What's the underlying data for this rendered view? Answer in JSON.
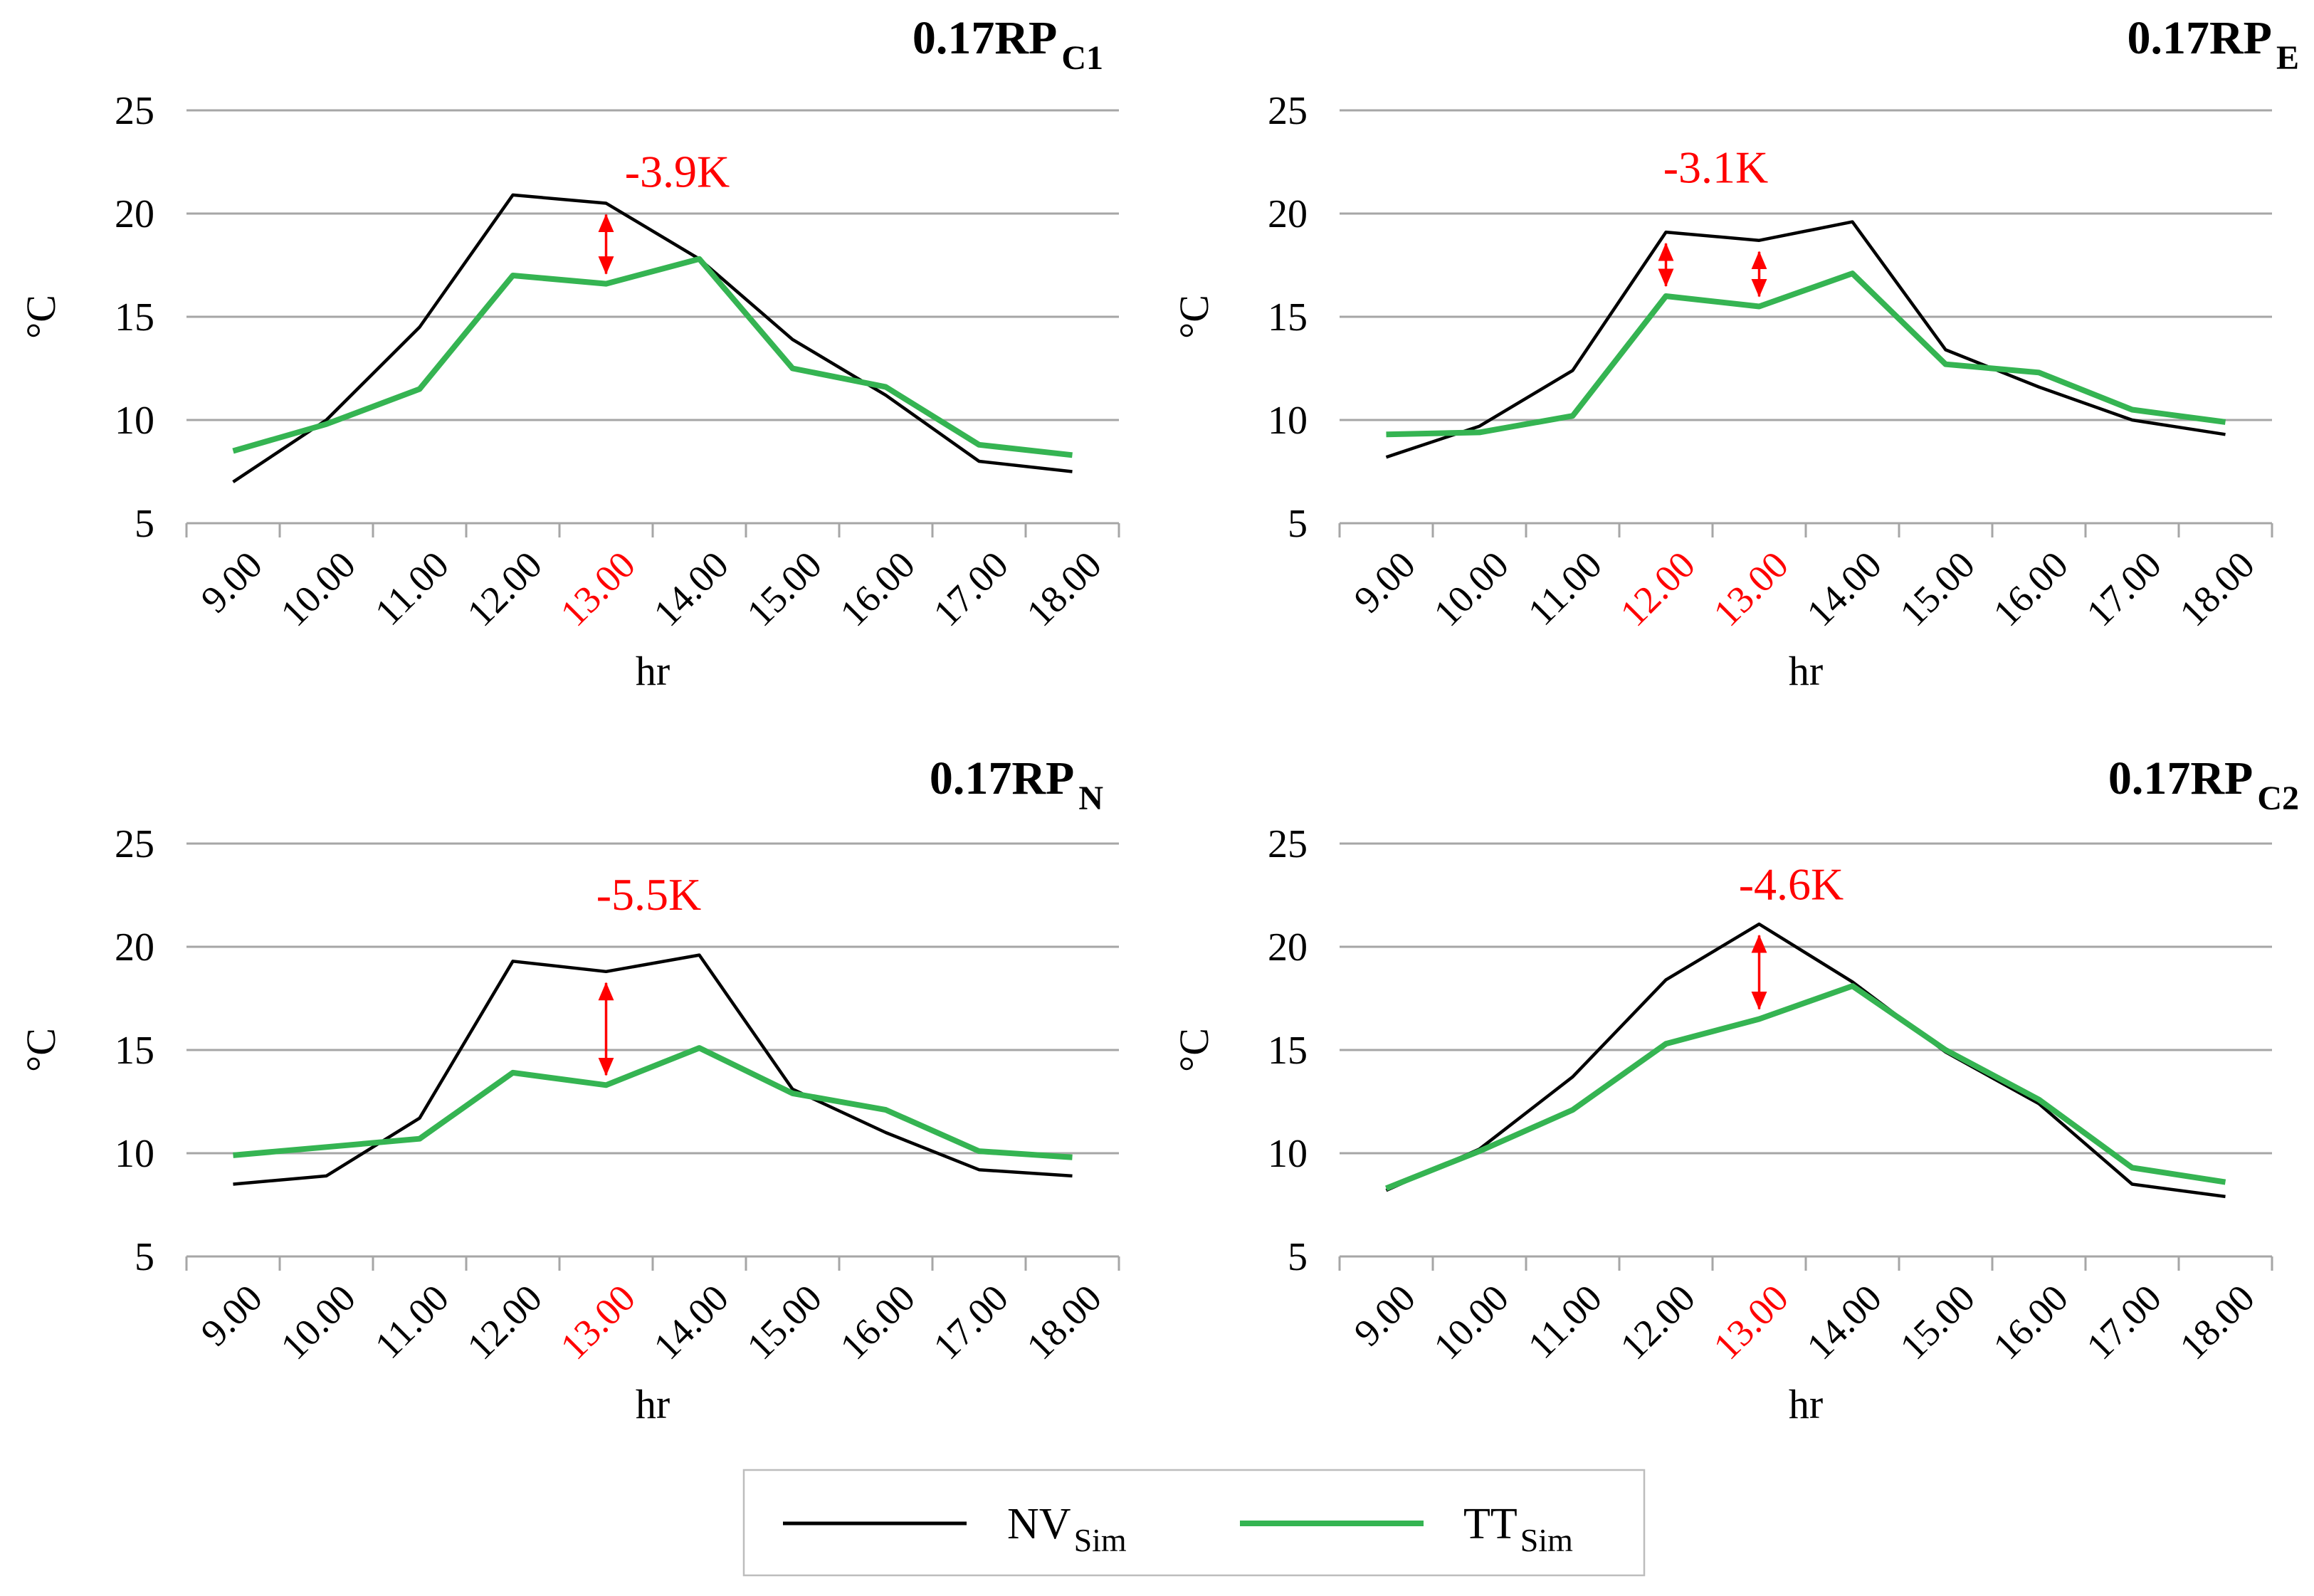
{
  "figure": {
    "ylabel": "°C",
    "xlabel": "hr",
    "colors": {
      "nv_line": "#000000",
      "tt_line": "#35b452",
      "annotation": "#ff0000",
      "gridline": "#a6a6a6",
      "highlighted_tick": "#ff0000",
      "legend_border": "#bdbdbd"
    }
  },
  "legend": {
    "items": [
      {
        "label": "NV",
        "sub": "Sim",
        "color": "#000000"
      },
      {
        "label": "TT",
        "sub": "Sim",
        "color": "#35b452"
      }
    ]
  },
  "chart_data": [
    {
      "type": "line",
      "title_base": "0.17RP",
      "title_sub": "C1",
      "x": [
        "9.00",
        "10.00",
        "11.00",
        "12.00",
        "13.00",
        "14.00",
        "15.00",
        "16.00",
        "17.00",
        "18.00"
      ],
      "highlighted_x": [
        "13.00"
      ],
      "yticks": [
        "25",
        "20",
        "15",
        "10",
        "5"
      ],
      "ylim": [
        5,
        25
      ],
      "grid": true,
      "series": [
        {
          "name": "NV",
          "sub": "Sim",
          "color": "#000000",
          "values": [
            7.0,
            10.0,
            14.5,
            20.9,
            20.5,
            17.8,
            13.9,
            11.2,
            8.0,
            7.5
          ]
        },
        {
          "name": "TT",
          "sub": "Sim",
          "color": "#35b452",
          "values": [
            8.5,
            9.8,
            11.5,
            17.0,
            16.6,
            17.8,
            12.5,
            11.6,
            8.8,
            8.3
          ]
        }
      ],
      "annotation": {
        "label": "-3.9K",
        "label_x": "13.00",
        "label_dx": 100,
        "label_y": 21.3,
        "arrows": [
          {
            "x": "13.00",
            "from": 16.6,
            "to": 20.5
          }
        ]
      }
    },
    {
      "type": "line",
      "title_base": "0.17RP",
      "title_sub": "E",
      "x": [
        "9.00",
        "10.00",
        "11.00",
        "12.00",
        "13.00",
        "14.00",
        "15.00",
        "16.00",
        "17.00",
        "18.00"
      ],
      "highlighted_x": [
        "12.00",
        "13.00"
      ],
      "yticks": [
        "25",
        "20",
        "15",
        "10",
        "5"
      ],
      "ylim": [
        5,
        25
      ],
      "grid": true,
      "series": [
        {
          "name": "NV",
          "sub": "Sim",
          "color": "#000000",
          "values": [
            8.2,
            9.7,
            12.4,
            19.1,
            18.7,
            19.6,
            13.4,
            11.6,
            10.0,
            9.3
          ]
        },
        {
          "name": "TT",
          "sub": "Sim",
          "color": "#35b452",
          "values": [
            9.3,
            9.4,
            10.2,
            16.0,
            15.5,
            17.1,
            12.7,
            12.3,
            10.5,
            9.9
          ]
        }
      ],
      "annotation": {
        "label": "-3.1K",
        "label_x": "12.00",
        "label_dx": 70,
        "label_y": 21.5,
        "arrows": [
          {
            "x": "12.00",
            "from": 16.0,
            "to": 19.1
          },
          {
            "x": "13.00",
            "from": 15.5,
            "to": 18.7
          }
        ]
      }
    },
    {
      "type": "line",
      "title_base": "0.17RP",
      "title_sub": "N",
      "x": [
        "9.00",
        "10.00",
        "11.00",
        "12.00",
        "13.00",
        "14.00",
        "15.00",
        "16.00",
        "17.00",
        "18.00"
      ],
      "highlighted_x": [
        "13.00"
      ],
      "yticks": [
        "25",
        "20",
        "15",
        "10",
        "5"
      ],
      "ylim": [
        5,
        25
      ],
      "grid": true,
      "series": [
        {
          "name": "NV",
          "sub": "Sim",
          "color": "#000000",
          "values": [
            8.5,
            8.9,
            11.7,
            19.3,
            18.8,
            19.6,
            13.1,
            11.0,
            9.2,
            8.9
          ]
        },
        {
          "name": "TT",
          "sub": "Sim",
          "color": "#35b452",
          "values": [
            9.9,
            10.3,
            10.7,
            13.9,
            13.3,
            15.1,
            12.9,
            12.1,
            10.1,
            9.8
          ]
        }
      ],
      "annotation": {
        "label": "-5.5K",
        "label_x": "13.00",
        "label_dx": 60,
        "label_y": 21.8,
        "arrows": [
          {
            "x": "13.00",
            "from": 13.3,
            "to": 18.8
          }
        ]
      }
    },
    {
      "type": "line",
      "title_base": "0.17RP",
      "title_sub": "C2",
      "x": [
        "9.00",
        "10.00",
        "11.00",
        "12.00",
        "13.00",
        "14.00",
        "15.00",
        "16.00",
        "17.00",
        "18.00"
      ],
      "highlighted_x": [
        "13.00"
      ],
      "yticks": [
        "25",
        "20",
        "15",
        "10",
        "5"
      ],
      "ylim": [
        5,
        25
      ],
      "grid": true,
      "series": [
        {
          "name": "NV",
          "sub": "Sim",
          "color": "#000000",
          "values": [
            8.2,
            10.2,
            13.7,
            18.4,
            21.1,
            18.3,
            14.9,
            12.4,
            8.5,
            7.9
          ]
        },
        {
          "name": "TT",
          "sub": "Sim",
          "color": "#35b452",
          "values": [
            8.3,
            10.1,
            12.1,
            15.3,
            16.5,
            18.1,
            15.0,
            12.6,
            9.3,
            8.6
          ]
        }
      ],
      "annotation": {
        "label": "-4.6K",
        "label_x": "13.00",
        "label_dx": 45,
        "label_y": 22.3,
        "arrows": [
          {
            "x": "13.00",
            "from": 16.5,
            "to": 21.1
          }
        ]
      }
    }
  ]
}
